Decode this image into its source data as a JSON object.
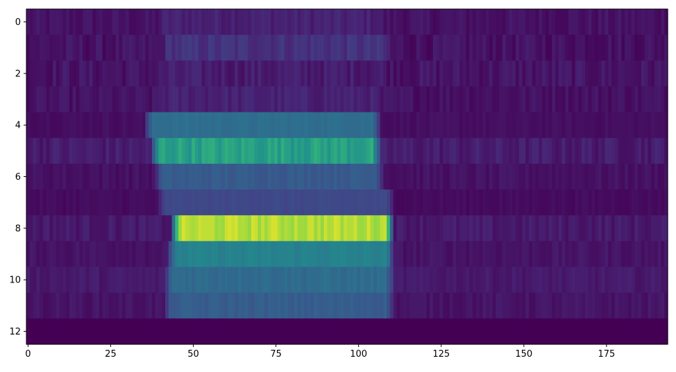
{
  "chart_data": {
    "type": "heatmap",
    "title": "",
    "xlabel": "",
    "ylabel": "",
    "colormap": "viridis",
    "n_rows": 13,
    "n_cols": 194,
    "xlim": [
      -0.5,
      193.5
    ],
    "ylim": [
      12.5,
      -0.5
    ],
    "x_ticks": [
      0,
      25,
      50,
      75,
      100,
      125,
      150,
      175
    ],
    "y_ticks": [
      0,
      2,
      4,
      6,
      8,
      10,
      12
    ],
    "x_tick_labels": [
      "0",
      "25",
      "50",
      "75",
      "100",
      "125",
      "150",
      "175"
    ],
    "y_tick_labels": [
      "0",
      "2",
      "4",
      "6",
      "8",
      "10",
      "12"
    ],
    "value_range": [
      0,
      1
    ],
    "rows": [
      {
        "row": 0,
        "background": 0.06,
        "band_start": 40,
        "band_end": 107,
        "band_level": 0.12,
        "noise": 0.04
      },
      {
        "row": 1,
        "background": 0.06,
        "band_start": 41,
        "band_end": 109,
        "band_level": 0.18,
        "noise": 0.05
      },
      {
        "row": 2,
        "background": 0.07,
        "band_start": 40,
        "band_end": 108,
        "band_level": 0.1,
        "noise": 0.05
      },
      {
        "row": 3,
        "background": 0.06,
        "band_start": 39,
        "band_end": 106,
        "band_level": 0.12,
        "noise": 0.04
      },
      {
        "row": 4,
        "background": 0.05,
        "band_start": 36,
        "band_end": 106,
        "band_level": 0.45,
        "noise": 0.02
      },
      {
        "row": 5,
        "background": 0.1,
        "band_start": 38,
        "band_end": 106,
        "band_level": 0.68,
        "noise": 0.05
      },
      {
        "row": 6,
        "background": 0.06,
        "band_start": 39,
        "band_end": 107,
        "band_level": 0.36,
        "noise": 0.03
      },
      {
        "row": 7,
        "background": 0.04,
        "band_start": 40,
        "band_end": 110,
        "band_level": 0.27,
        "noise": 0.02
      },
      {
        "row": 8,
        "background": 0.09,
        "band_start": 44,
        "band_end": 110,
        "band_level": 0.92,
        "noise": 0.04
      },
      {
        "row": 9,
        "background": 0.07,
        "band_start": 43,
        "band_end": 110,
        "band_level": 0.55,
        "noise": 0.03
      },
      {
        "row": 10,
        "background": 0.09,
        "band_start": 42,
        "band_end": 110,
        "band_level": 0.44,
        "noise": 0.03
      },
      {
        "row": 11,
        "background": 0.07,
        "band_start": 42,
        "band_end": 110,
        "band_level": 0.37,
        "noise": 0.03
      },
      {
        "row": 12,
        "background": 0.0,
        "band_start": 0,
        "band_end": 0,
        "band_level": 0.0,
        "noise": 0.0
      }
    ]
  }
}
